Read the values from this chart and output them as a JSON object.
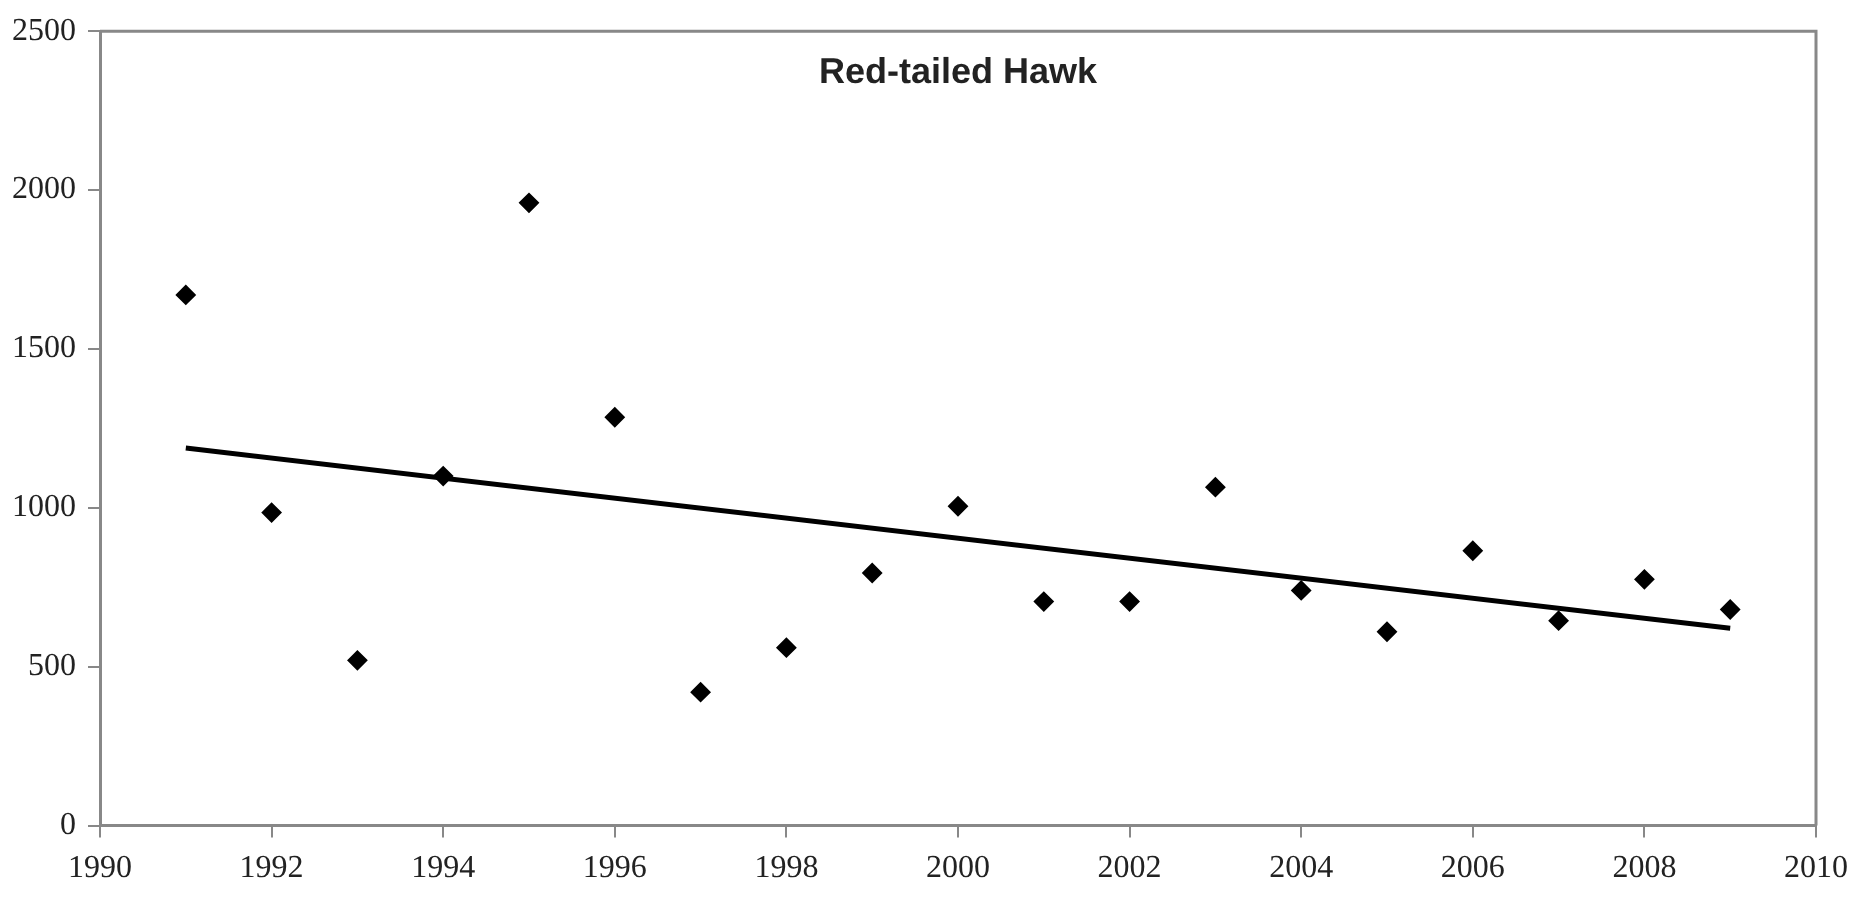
{
  "chart_data": {
    "type": "scatter",
    "title": "Red-tailed Hawk",
    "marker": "diamond",
    "grid": false,
    "legend": false,
    "xlim": [
      1990,
      2010
    ],
    "xticks": [
      1990,
      1992,
      1994,
      1996,
      1998,
      2000,
      2002,
      2004,
      2006,
      2008,
      2010
    ],
    "ylim": [
      0,
      2500
    ],
    "yticks": [
      0,
      500,
      1000,
      1500,
      2000,
      2500
    ],
    "x": [
      1991,
      1992,
      1993,
      1994,
      1995,
      1996,
      1997,
      1998,
      1999,
      2000,
      2001,
      2002,
      2003,
      2004,
      2005,
      2006,
      2007,
      2008,
      2009
    ],
    "series": [
      {
        "type": "scatter",
        "color": "#000000",
        "values": [
          1670,
          985,
          520,
          1100,
          1960,
          1285,
          420,
          560,
          795,
          1005,
          705,
          705,
          1065,
          740,
          610,
          865,
          645,
          775,
          680
        ]
      },
      {
        "type": "line",
        "color": "#000000",
        "marker": "none",
        "line_style": "solid",
        "x": [
          1991,
          2009
        ],
        "values": [
          1188,
          621
        ]
      }
    ]
  }
}
